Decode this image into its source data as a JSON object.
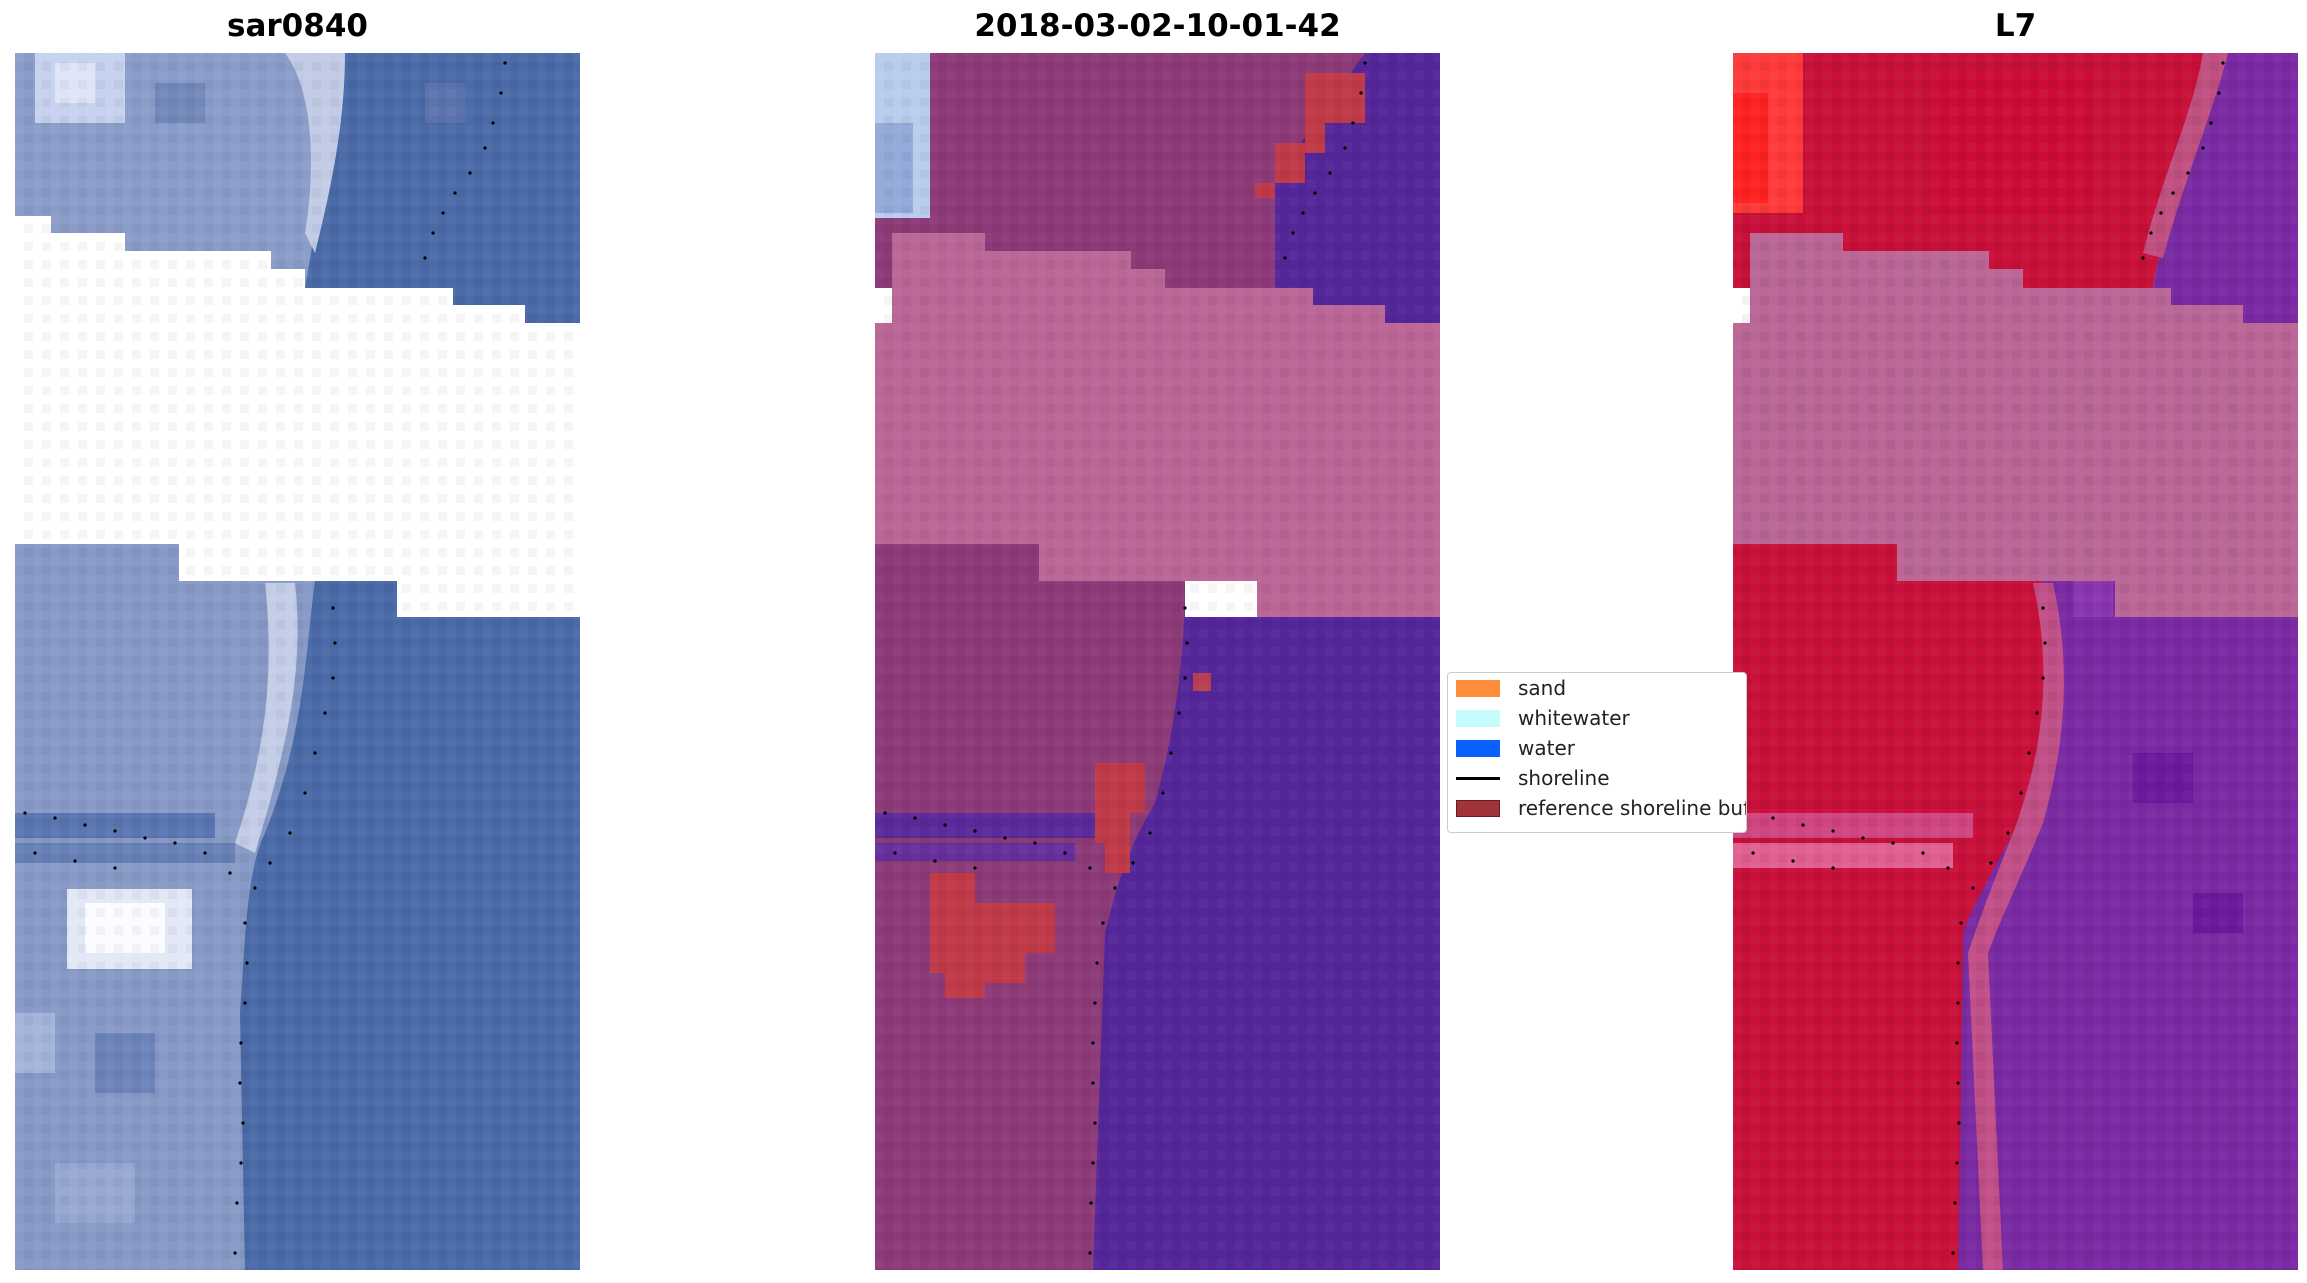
{
  "panels": [
    {
      "title": "sar0840"
    },
    {
      "title": "2018-03-02-10-01-42"
    },
    {
      "title": "L7"
    }
  ],
  "legend": {
    "items": [
      {
        "label": "sand",
        "color": "#ff8c3a",
        "kind": "patch"
      },
      {
        "label": "whitewater",
        "color": "#c6fcfb",
        "kind": "patch"
      },
      {
        "label": "water",
        "color": "#0a5fff",
        "kind": "patch"
      },
      {
        "label": "shoreline",
        "color": "#000000",
        "kind": "line"
      },
      {
        "label": "reference shoreline buffer",
        "color": "#a0343a",
        "kind": "patch"
      }
    ]
  },
  "colors": {
    "nodata": "#ffffff",
    "cloud_mask": "#ba6696",
    "rgb_land": "#8a9cc8",
    "rgb_water": "#4a6aa8",
    "rgb_bright": "#eef2fa",
    "class_land": "#8c3a78",
    "class_water": "#55269a",
    "class_buffer": "#c03a48",
    "class_whitewater": "#b9ccec",
    "fc_land": "#c8103a",
    "fc_water": "#7a2aa2",
    "fc_hot": "#ff3a3a"
  }
}
